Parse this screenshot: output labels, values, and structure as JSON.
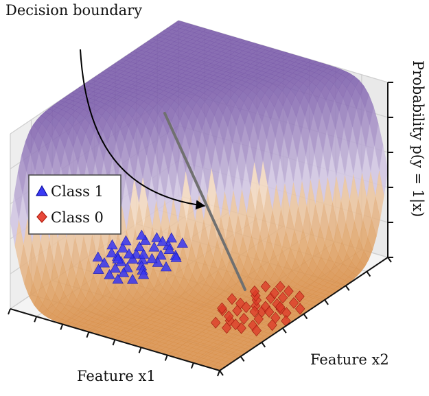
{
  "chart_data": {
    "type": "surface3d+scatter3d",
    "title": "",
    "annotation": "Decision boundary",
    "xlabel": "Feature x1",
    "ylabel": "Feature x2",
    "zlabel": "Probability p(y = 1|x)",
    "x_range": [
      -4,
      4
    ],
    "y_range": [
      -4,
      4
    ],
    "z_range": [
      0,
      1
    ],
    "surface": {
      "function": "logistic sigmoid of (x1 + x2) with steepness 3",
      "low_color": "#d9904a",
      "high_color": "#7b5cab"
    },
    "legend": {
      "placement": "left",
      "entries": [
        {
          "label": "Class 1",
          "marker": "triangle",
          "color": "#2a2af0"
        },
        {
          "label": "Class 0",
          "marker": "diamond",
          "color": "#dd2c1a"
        }
      ]
    },
    "series": [
      {
        "name": "Class 1",
        "z": 0,
        "points": [
          [
            2.4,
            0.3
          ],
          [
            2.8,
            0.5
          ],
          [
            3.2,
            0.1
          ],
          [
            2.1,
            0.8
          ],
          [
            2.6,
            1.1
          ],
          [
            3.0,
            0.9
          ],
          [
            3.4,
            0.6
          ],
          [
            2.2,
            0.0
          ],
          [
            2.5,
            -0.3
          ],
          [
            2.9,
            -0.1
          ],
          [
            3.3,
            -0.4
          ],
          [
            1.9,
            0.4
          ],
          [
            2.7,
            0.2
          ],
          [
            3.1,
            1.3
          ],
          [
            2.3,
            1.4
          ],
          [
            2.0,
            -0.2
          ],
          [
            3.5,
            0.2
          ],
          [
            2.4,
            -0.6
          ],
          [
            2.8,
            -0.5
          ],
          [
            1.7,
            1.0
          ],
          [
            3.6,
            1.0
          ],
          [
            2.6,
            0.6
          ],
          [
            3.0,
            0.4
          ],
          [
            2.2,
            0.5
          ],
          [
            2.9,
            1.6
          ],
          [
            3.2,
            -0.8
          ],
          [
            1.8,
            -0.4
          ],
          [
            2.5,
            1.8
          ],
          [
            3.7,
            -0.2
          ],
          [
            2.1,
            1.2
          ],
          [
            1.5,
            0.3
          ],
          [
            3.4,
            1.5
          ],
          [
            2.7,
            -0.9
          ],
          [
            1.6,
            0.9
          ],
          [
            2.3,
            -1.0
          ],
          [
            3.8,
            0.6
          ],
          [
            2.0,
            1.7
          ],
          [
            3.1,
            0.0
          ],
          [
            2.6,
            1.5
          ],
          [
            1.9,
            -0.8
          ]
        ]
      },
      {
        "name": "Class 0",
        "z": 0,
        "points": [
          [
            -2.4,
            -0.3
          ],
          [
            -2.8,
            -0.5
          ],
          [
            -3.2,
            -0.1
          ],
          [
            -2.1,
            -0.8
          ],
          [
            -2.6,
            -1.1
          ],
          [
            -3.0,
            -0.9
          ],
          [
            -3.4,
            -0.6
          ],
          [
            -2.2,
            0.0
          ],
          [
            -2.5,
            0.3
          ],
          [
            -2.9,
            0.1
          ],
          [
            -3.3,
            0.4
          ],
          [
            -1.9,
            -0.4
          ],
          [
            -2.7,
            -0.2
          ],
          [
            -3.1,
            -1.3
          ],
          [
            -2.3,
            -1.4
          ],
          [
            -2.0,
            0.2
          ],
          [
            -3.5,
            -0.2
          ],
          [
            -2.4,
            0.6
          ],
          [
            -2.8,
            0.5
          ],
          [
            -1.7,
            -1.0
          ],
          [
            -3.6,
            -1.0
          ],
          [
            -2.6,
            -0.6
          ],
          [
            -3.0,
            -0.4
          ],
          [
            -2.2,
            -0.5
          ],
          [
            -2.9,
            -1.6
          ],
          [
            -3.2,
            0.8
          ],
          [
            -1.8,
            0.4
          ],
          [
            -2.5,
            -1.8
          ],
          [
            -3.7,
            0.2
          ],
          [
            -2.1,
            -1.2
          ],
          [
            -1.5,
            -0.3
          ],
          [
            -3.4,
            -1.5
          ],
          [
            -2.7,
            0.9
          ],
          [
            -1.6,
            -0.9
          ],
          [
            -2.3,
            1.0
          ],
          [
            -3.8,
            -0.6
          ],
          [
            -2.0,
            -1.7
          ],
          [
            -3.1,
            0.0
          ],
          [
            -2.6,
            -1.5
          ],
          [
            -1.9,
            0.8
          ]
        ]
      }
    ]
  }
}
